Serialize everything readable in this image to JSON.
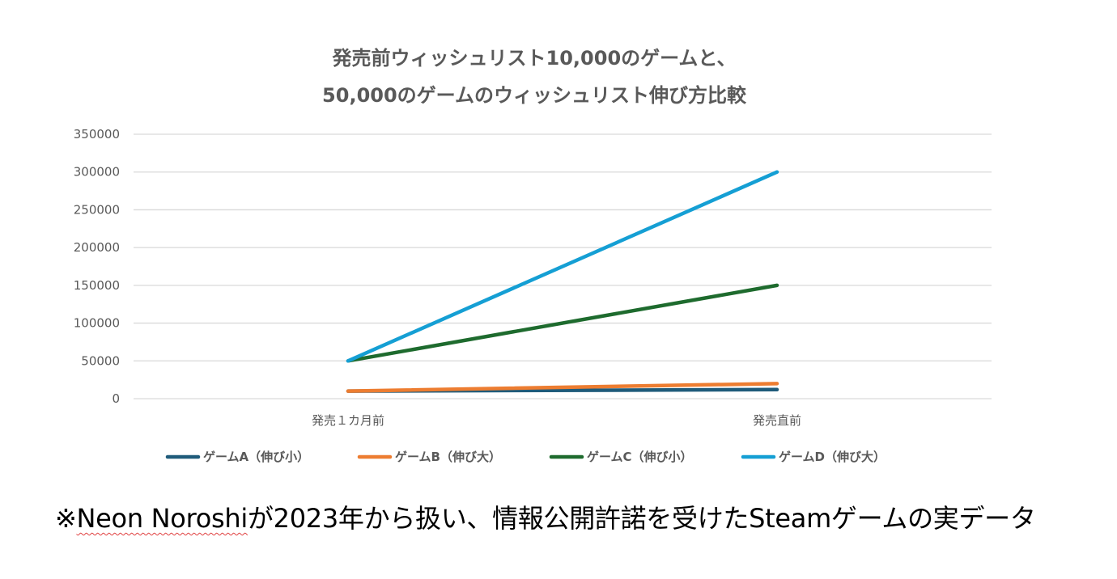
{
  "chart_data": {
    "type": "line",
    "title_lines": [
      "発売前ウィッシュリスト10,000のゲームと、",
      "50,000のゲームのウィッシュリスト伸び方比較"
    ],
    "categories": [
      "発売１カ月前",
      "発売直前"
    ],
    "ylim": [
      0,
      350000
    ],
    "yticks": [
      "0",
      "50000",
      "100000",
      "150000",
      "200000",
      "250000",
      "300000",
      "350000"
    ],
    "grid": true,
    "legend_position": "bottom",
    "series": [
      {
        "name": "ゲームA（伸び小）",
        "values": [
          10000,
          12000
        ],
        "color": "#1f5b7a"
      },
      {
        "name": "ゲームB（伸び大）",
        "values": [
          10000,
          20000
        ],
        "color": "#ed7d31"
      },
      {
        "name": "ゲームC（伸び小）",
        "values": [
          50000,
          150000
        ],
        "color": "#1e6b2e"
      },
      {
        "name": "ゲームD（伸び大）",
        "values": [
          50000,
          300000
        ],
        "color": "#159fd4"
      }
    ]
  },
  "footnote": {
    "prefix": "※",
    "highlight": "Neon Noroshi",
    "rest": "が2023年から扱い、情報公開許諾を受けたSteamゲームの実データ"
  }
}
